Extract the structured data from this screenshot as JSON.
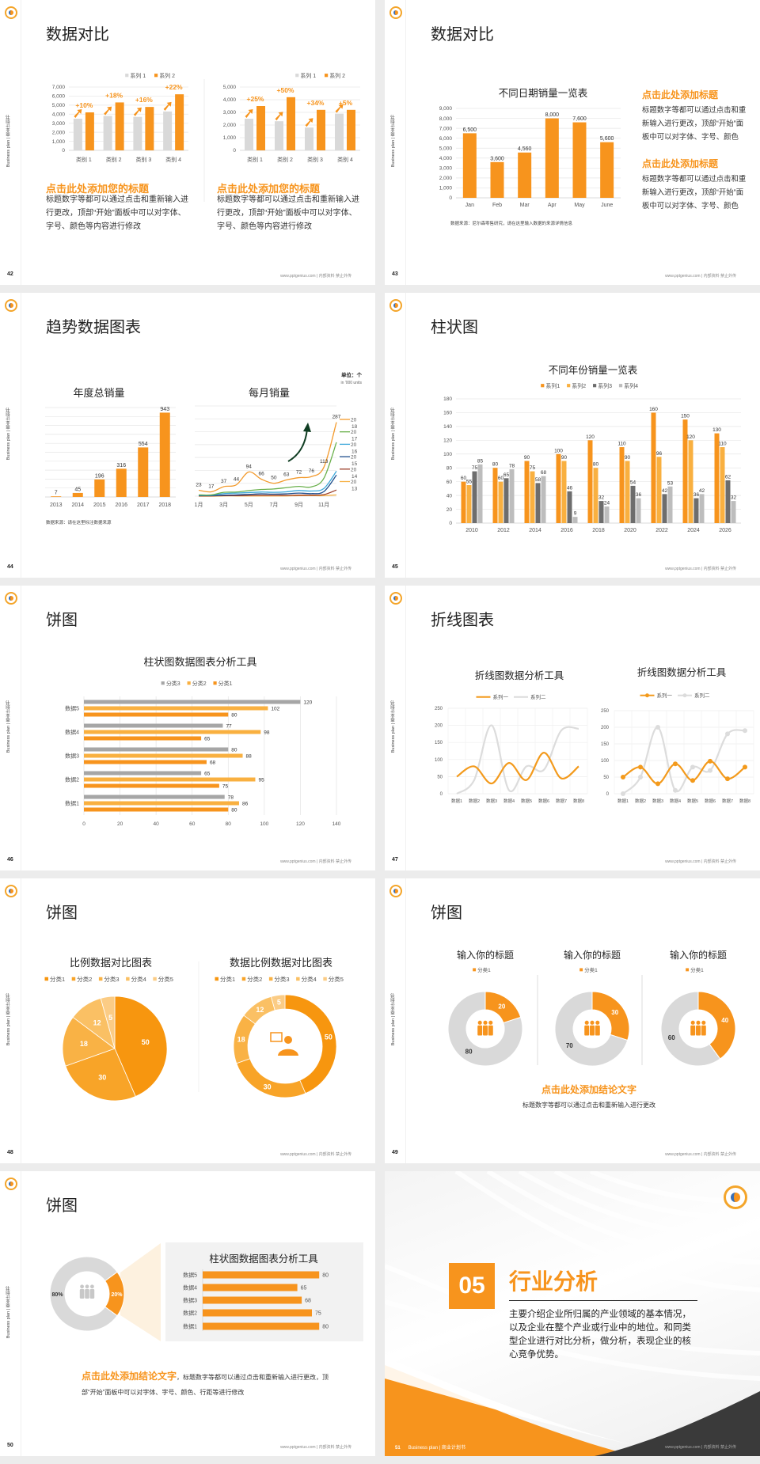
{
  "common": {
    "sidebar": "Business plan | 商业计划书",
    "footer": "www.pptgenius.com | 内部资料 禁止外传",
    "accent": "#f7941d"
  },
  "s42": {
    "page": "42",
    "title": "数据对比",
    "panels": [
      {
        "heading": "点击此处添加您的标题",
        "body": "标题数字等都可以通过点击和重新输入进行更改，顶部“开始”面板中可以对字体、字号、颜色等内容进行修改"
      },
      {
        "heading": "点击此处添加您的标题",
        "body": "标题数字等都可以通过点击和重新输入进行更改，顶部“开始”面板中可以对字体、字号、颜色等内容进行修改"
      }
    ]
  },
  "s43": {
    "page": "43",
    "title": "数据对比",
    "blocks": [
      {
        "heading": "点击此处添加标题",
        "body": "标题数字等都可以通过点击和重新输入进行更改，顶部“开始”面板中可以对字体、字号、颜色"
      },
      {
        "heading": "点击此处添加标题",
        "body": "标题数字等都可以通过点击和重新输入进行更改，顶部“开始”面板中可以对字体、字号、颜色"
      }
    ]
  },
  "s44": {
    "page": "44",
    "title": "趋势数据图表"
  },
  "s45": {
    "page": "45",
    "title": "柱状图"
  },
  "s46": {
    "page": "46",
    "title": "饼图"
  },
  "s47": {
    "page": "47",
    "title": "折线图表"
  },
  "s48": {
    "page": "48",
    "title": "饼图"
  },
  "s49": {
    "page": "49",
    "title": "饼图",
    "conclusion": "点击此处添加结论文字",
    "body": "标题数字等都可以通过点击和重新输入进行更改"
  },
  "s50": {
    "page": "50",
    "title": "饼图",
    "conclusion": "点击此处添加结论文字",
    "body": "，标题数字等都可以通过点击和重新输入进行更改，顶部“开始”面板中可以对字体、字号、颜色、行距等进行修改"
  },
  "s51": {
    "page": "51",
    "number": "05",
    "title": "行业分析",
    "body": "主要介绍企业所归属的产业领域的基本情况，以及企业在整个产业或行业中的地位。和同类型企业进行对比分析，做分析，表现企业的核心竞争优势。",
    "footer_left": "Business plan | 商业计划书",
    "colors": {
      "orange": "#f7941d",
      "dark": "#3a3a3a"
    }
  },
  "chart_data": [
    {
      "type": "bar",
      "categories": [
        "类别 1",
        "类别 2",
        "类别 3",
        "类别 4"
      ],
      "series": [
        {
          "name": "系列 1",
          "values": [
            3500,
            3800,
            3700,
            4300
          ],
          "color": "#d9d9d9"
        },
        {
          "name": "系列 2",
          "values": [
            4200,
            5300,
            4800,
            6200
          ],
          "color": "#f7941d"
        }
      ],
      "ylim": [
        0,
        7000
      ],
      "ystep": 1000,
      "annotations": [
        "+10%",
        "+18%",
        "+16%",
        "+22%"
      ],
      "grid": true,
      "legend": "top-right"
    },
    {
      "type": "bar",
      "categories": [
        "类别 1",
        "类别 2",
        "类别 3",
        "类别 4"
      ],
      "series": [
        {
          "name": "系列 1",
          "values": [
            2500,
            2300,
            1800,
            2900
          ],
          "color": "#d9d9d9"
        },
        {
          "name": "系列 2",
          "values": [
            3500,
            4200,
            3200,
            3200
          ],
          "color": "#f7941d"
        }
      ],
      "ylim": [
        0,
        5000
      ],
      "ystep": 1000,
      "annotations": [
        "+25%",
        "+50%",
        "+34%",
        "+5%"
      ],
      "grid": true,
      "legend": "top-right"
    },
    {
      "type": "bar",
      "title": "不同日期销量一览表",
      "categories": [
        "Jan",
        "Feb",
        "Mar",
        "Apr",
        "May",
        "June"
      ],
      "series": [
        {
          "values": [
            6500,
            3600,
            4560,
            8000,
            7600,
            5600
          ],
          "color": "#f7941d"
        }
      ],
      "ylim": [
        0,
        9000
      ],
      "ystep": 1000,
      "data_labels": true,
      "grid": true,
      "source": "数据来源：尼尔森零售研究，请在这里输入数据的来源详情信息"
    },
    {
      "type": "bar",
      "title": "年度总销量",
      "categories": [
        "2013",
        "2014",
        "2015",
        "2016",
        "2017",
        "2018"
      ],
      "series": [
        {
          "values": [
            7,
            45,
            196,
            316,
            554,
            943
          ],
          "color": "#f7941d"
        }
      ],
      "ylim": [
        0,
        1000
      ],
      "ystep": 100,
      "data_labels": true,
      "grid": true,
      "source": "数据来源：请在这里标注数据来源"
    },
    {
      "type": "line",
      "title": "每月销量",
      "unit": "单位：个",
      "unit_note": "in '000 units",
      "x_labels": [
        "1月",
        "3月",
        "5月",
        "7月",
        "9月",
        "11月"
      ],
      "ylim": [
        0,
        350
      ],
      "ystep": 50,
      "grid": true,
      "legend": "right",
      "series": [
        {
          "name": "2018",
          "color": "#f39a2c",
          "values": [
            23,
            17,
            37,
            44,
            94,
            66,
            50,
            63,
            72,
            76,
            113,
            287
          ],
          "data_labels": true
        },
        {
          "name": "2017",
          "color": "#6ab04c",
          "values": [
            5,
            5,
            15,
            16,
            22,
            26,
            28,
            33,
            38,
            36,
            70,
            209
          ]
        },
        {
          "name": "2016",
          "color": "#3aa7d9",
          "values": [
            4,
            4,
            10,
            12,
            14,
            16,
            15,
            17,
            22,
            20,
            30,
            97
          ]
        },
        {
          "name": "2015",
          "color": "#1f4e8c",
          "values": [
            2,
            2,
            4,
            5,
            7,
            9,
            8,
            9,
            12,
            10,
            18,
            82
          ]
        },
        {
          "name": "2014",
          "color": "#9b3d28",
          "values": [
            1,
            1,
            2,
            2,
            3,
            3,
            3,
            3,
            4,
            4,
            6,
            24
          ]
        },
        {
          "name": "2013",
          "color": "#f7b34a",
          "values": [
            0,
            0,
            1,
            1,
            1,
            1,
            1,
            1,
            2,
            2,
            2,
            5
          ]
        }
      ]
    },
    {
      "type": "bar",
      "title": "不同年份销量一览表",
      "categories": [
        "2010",
        "2012",
        "2014",
        "2016",
        "2018",
        "2020",
        "2022",
        "2024",
        "2026"
      ],
      "series": [
        {
          "name": "系列1",
          "color": "#f7941d",
          "values": [
            60,
            80,
            90,
            100,
            120,
            110,
            160,
            150,
            130
          ]
        },
        {
          "name": "系列2",
          "color": "#f9b040",
          "values": [
            55,
            60,
            75,
            90,
            80,
            90,
            96,
            120,
            110
          ]
        },
        {
          "name": "系列3",
          "color": "#6d6d6d",
          "values": [
            75,
            65,
            58,
            46,
            32,
            54,
            42,
            36,
            62
          ]
        },
        {
          "name": "系列4",
          "color": "#bdbdbd",
          "values": [
            85,
            78,
            68,
            9,
            24,
            36,
            53,
            42,
            32
          ]
        }
      ],
      "ylim": [
        0,
        180
      ],
      "ystep": 20,
      "data_labels": true,
      "grid": true,
      "legend": "top"
    },
    {
      "type": "bar",
      "orientation": "horizontal",
      "title": "柱状图数据图表分析工具",
      "categories": [
        "数据1",
        "数据2",
        "数据3",
        "数据4",
        "数据5"
      ],
      "series": [
        {
          "name": "分类3",
          "color": "#a6a6a6",
          "values": [
            78,
            65,
            80,
            77,
            120
          ]
        },
        {
          "name": "分类2",
          "color": "#f9b040",
          "values": [
            86,
            95,
            88,
            98,
            102
          ]
        },
        {
          "name": "分类1",
          "color": "#f7941d",
          "values": [
            80,
            75,
            68,
            65,
            80
          ]
        }
      ],
      "xlim": [
        0,
        140
      ],
      "xstep": 20,
      "data_labels": true,
      "grid": true,
      "legend": "top"
    },
    {
      "type": "line",
      "smooth": true,
      "title": "折线图数据分析工具",
      "categories": [
        "数据1",
        "数据2",
        "数据3",
        "数据4",
        "数据5",
        "数据6",
        "数据7",
        "数据8"
      ],
      "series": [
        {
          "name": "系列一",
          "color": "#f39a1c",
          "values": [
            50,
            80,
            30,
            90,
            40,
            120,
            45,
            80
          ]
        },
        {
          "name": "系列二",
          "color": "#dcdcdc",
          "values": [
            0,
            40,
            200,
            10,
            80,
            70,
            185,
            190
          ]
        }
      ],
      "ylim": [
        0,
        250
      ],
      "ystep": 50,
      "grid": true,
      "legend": "top"
    },
    {
      "type": "line",
      "smooth": true,
      "markers": true,
      "title": "折线图数据分析工具",
      "categories": [
        "数据1",
        "数据2",
        "数据3",
        "数据4",
        "数据5",
        "数据6",
        "数据7",
        "数据8"
      ],
      "series": [
        {
          "name": "系列一",
          "color": "#f39a1c",
          "values": [
            50,
            80,
            30,
            90,
            40,
            98,
            45,
            80
          ]
        },
        {
          "name": "系列二",
          "color": "#dcdcdc",
          "values": [
            0,
            50,
            200,
            10,
            80,
            70,
            180,
            190
          ]
        }
      ],
      "ylim": [
        0,
        250
      ],
      "ystep": 50,
      "grid": true,
      "legend": "top"
    },
    {
      "type": "pie",
      "title": "比例数据对比图表",
      "labels": [
        "分类1",
        "分类2",
        "分类3",
        "分类4",
        "分类5"
      ],
      "values": [
        50,
        30,
        18,
        12,
        5
      ],
      "colors": [
        "#f7960f",
        "#f8a428",
        "#f9b245",
        "#fac064",
        "#fbcc85"
      ],
      "legend": "top"
    },
    {
      "type": "pie",
      "donut": true,
      "title": "数据比例数据对比图表",
      "labels": [
        "分类1",
        "分类2",
        "分类3",
        "分类4",
        "分类5"
      ],
      "values": [
        50,
        30,
        18,
        12,
        5
      ],
      "colors": [
        "#f7960f",
        "#f8a428",
        "#f9b245",
        "#fac064",
        "#fbcc85"
      ],
      "legend": "top",
      "center_icon": "customer-service-icon"
    },
    {
      "type": "pie",
      "donut": true,
      "title": "输入你的标题",
      "labels": [
        "分类1",
        ""
      ],
      "values": [
        20,
        80
      ],
      "colors": [
        "#f7941d",
        "#d9d9d9"
      ],
      "center_icon": "team-icon"
    },
    {
      "type": "pie",
      "donut": true,
      "title": "输入你的标题",
      "labels": [
        "分类1",
        ""
      ],
      "values": [
        30,
        70
      ],
      "colors": [
        "#f7941d",
        "#d9d9d9"
      ],
      "center_icon": "team-icon"
    },
    {
      "type": "pie",
      "donut": true,
      "title": "输入你的标题",
      "labels": [
        "分类1",
        ""
      ],
      "values": [
        40,
        60
      ],
      "colors": [
        "#f7941d",
        "#d9d9d9"
      ],
      "center_icon": "team-icon"
    },
    {
      "type": "pie",
      "donut": true,
      "values": [
        20,
        80
      ],
      "value_labels": [
        "20%",
        "80%"
      ],
      "colors": [
        "#f7941d",
        "#d9d9d9"
      ],
      "center_icon": "team-icon"
    },
    {
      "type": "bar",
      "orientation": "horizontal",
      "title": "柱状图数据图表分析工具",
      "categories": [
        "数据1",
        "数据2",
        "数据3",
        "数据4",
        "数据5"
      ],
      "series": [
        {
          "color": "#f7941d",
          "values": [
            80,
            75,
            68,
            65,
            80
          ]
        }
      ],
      "data_labels": true
    }
  ]
}
